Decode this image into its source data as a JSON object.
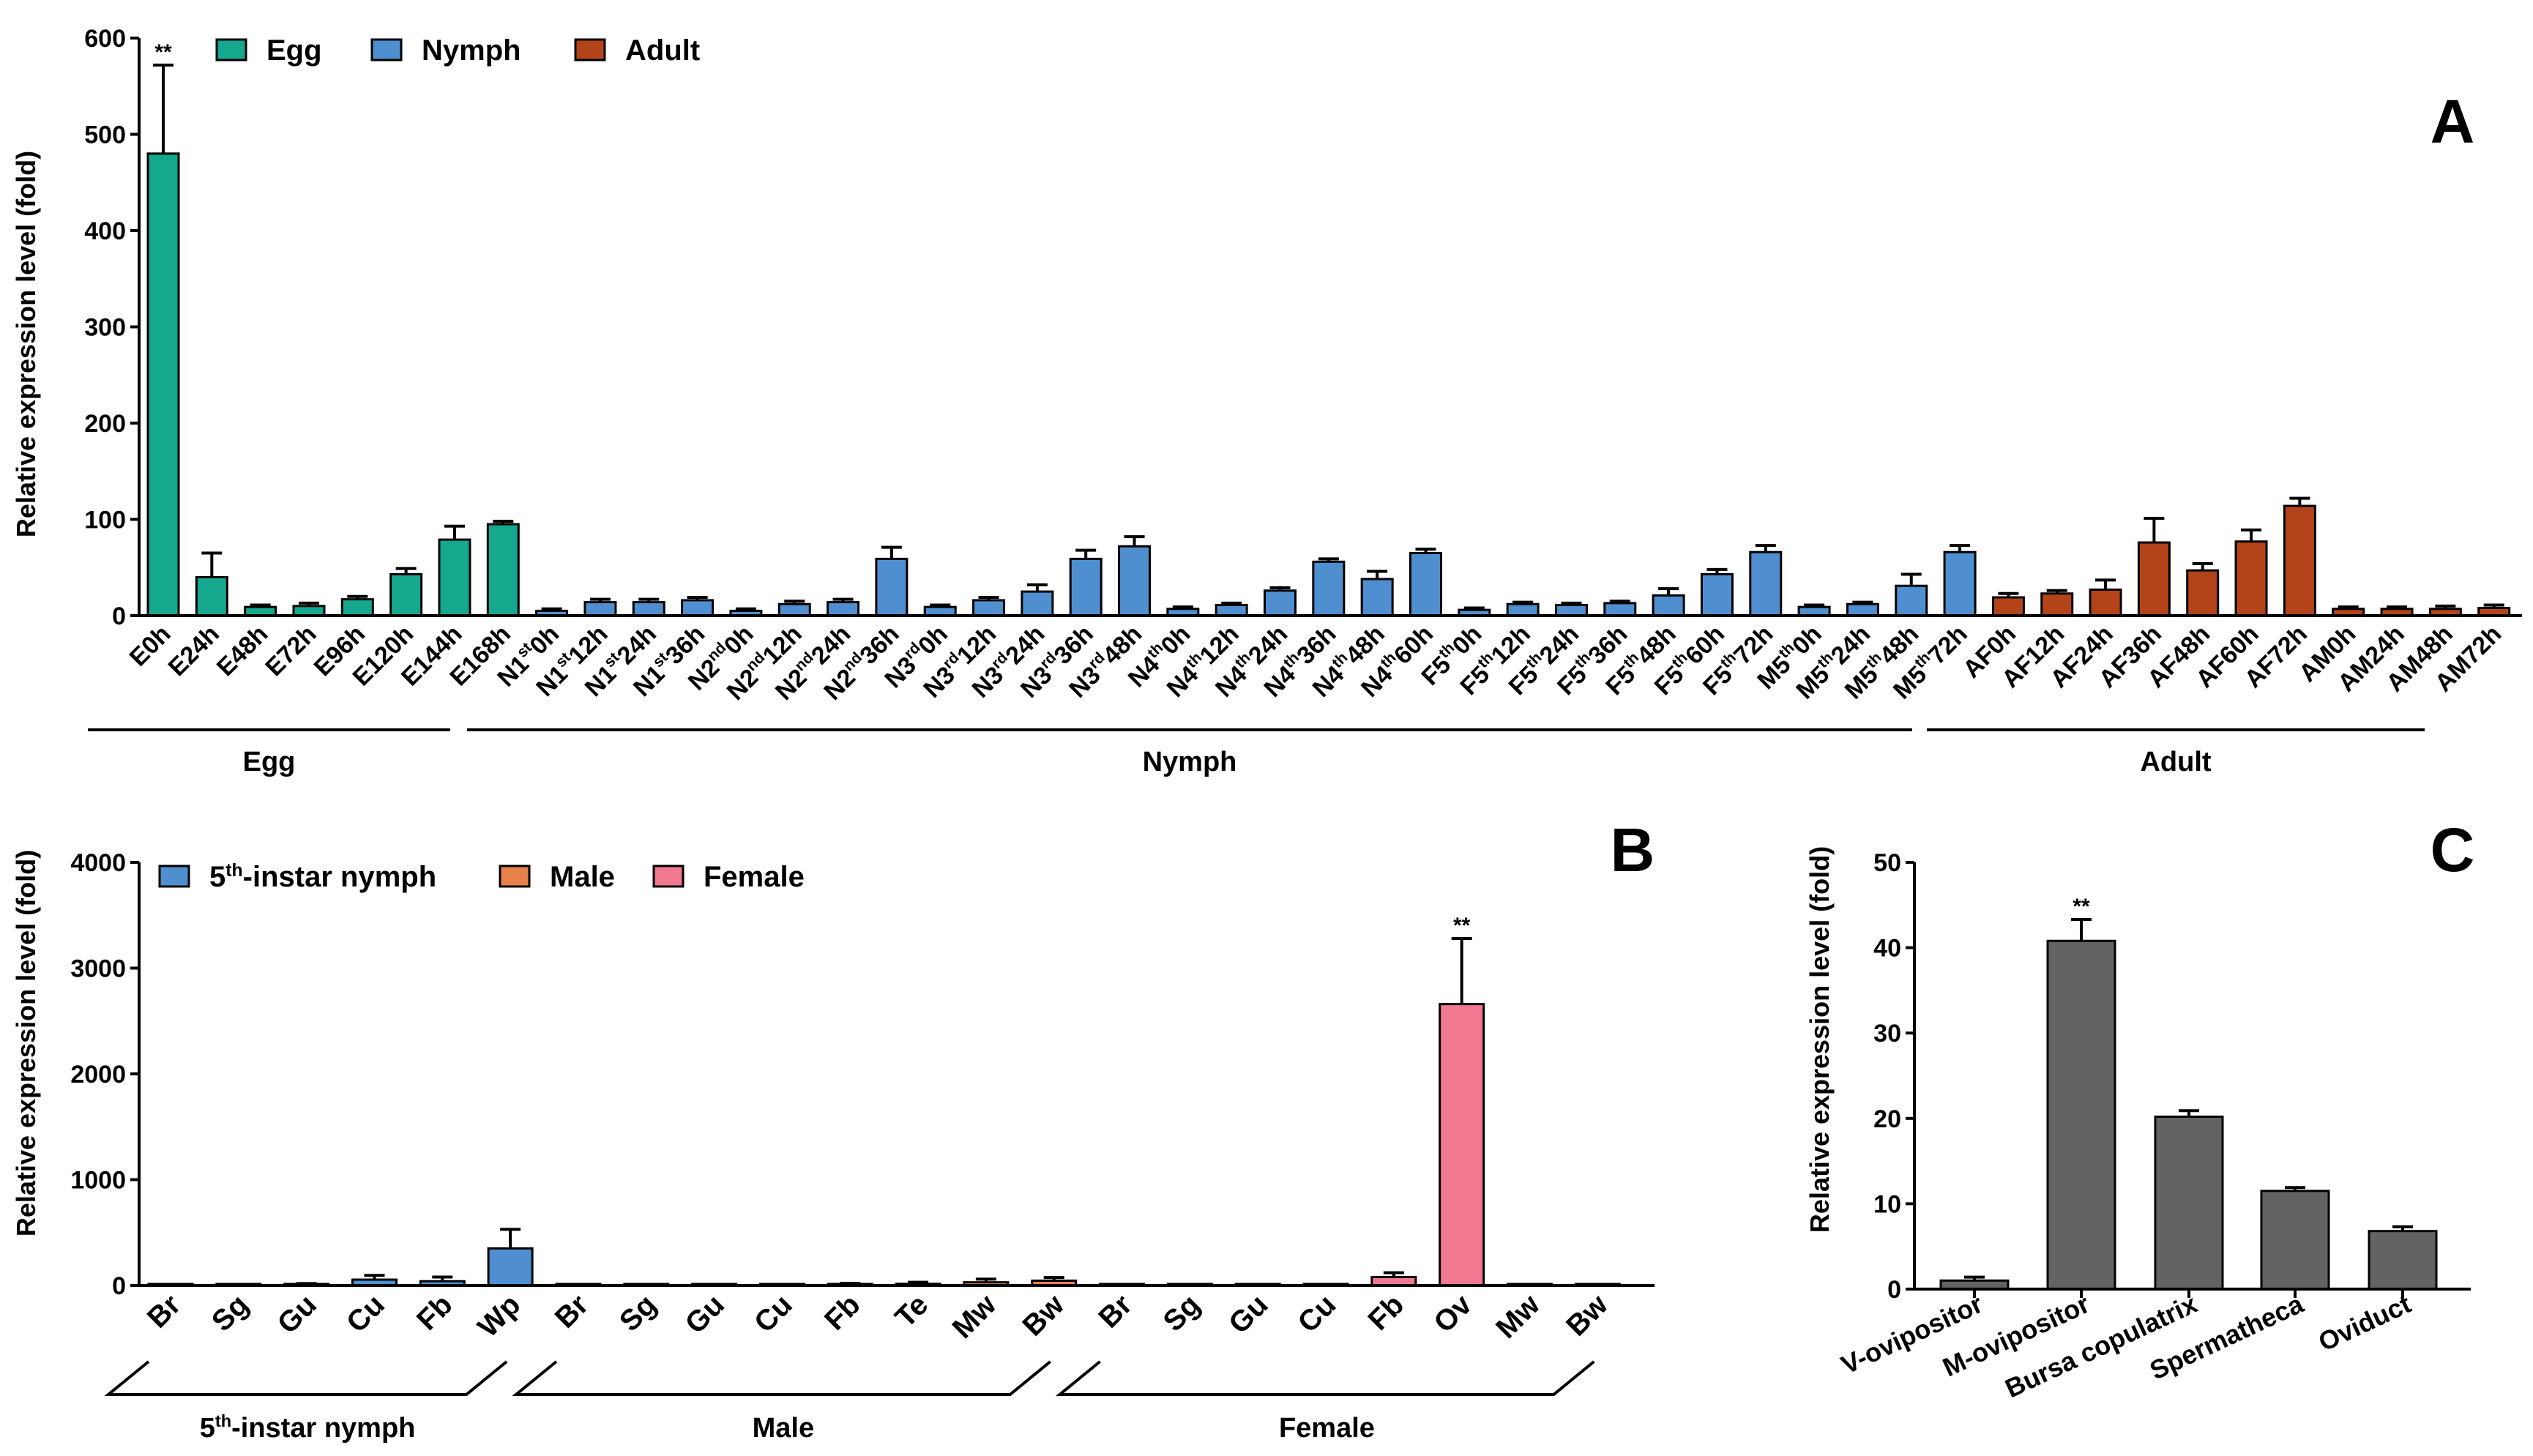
{
  "chart_data": [
    {
      "panel": "A",
      "type": "bar",
      "ylabel": "Relative expression level (fold)",
      "ylim": [
        0,
        600
      ],
      "yticks": [
        "0",
        "100",
        "200",
        "300",
        "400",
        "500",
        "600"
      ],
      "legend": [
        {
          "label": "Egg",
          "color": "#15a88e"
        },
        {
          "label": "Nymph",
          "color": "#4f8fcf"
        },
        {
          "label": "Adult",
          "color": "#b34419"
        }
      ],
      "groups": [
        {
          "label": "Egg",
          "series": 0,
          "bars": [
            {
              "cat": "E0h",
              "value": 480,
              "err": 92,
              "sig": "**"
            },
            {
              "cat": "E24h",
              "value": 40,
              "err": 25
            },
            {
              "cat": "E48h",
              "value": 9,
              "err": 2
            },
            {
              "cat": "E72h",
              "value": 10,
              "err": 3
            },
            {
              "cat": "E96h",
              "value": 17,
              "err": 3
            },
            {
              "cat": "E120h",
              "value": 43,
              "err": 6
            },
            {
              "cat": "E144h",
              "value": 79,
              "err": 14
            },
            {
              "cat": "E168h",
              "value": 95,
              "err": 3
            }
          ]
        },
        {
          "label": "Nymph",
          "series": 1,
          "bars": [
            {
              "cat": "N1st0h",
              "main": "N1",
              "sup": "st",
              "tail": "0h",
              "value": 5,
              "err": 2
            },
            {
              "cat": "N1st12h",
              "main": "N1",
              "sup": "st",
              "tail": "12h",
              "value": 14,
              "err": 3
            },
            {
              "cat": "N1st24h",
              "main": "N1",
              "sup": "st",
              "tail": "24h",
              "value": 14,
              "err": 3
            },
            {
              "cat": "N1st36h",
              "main": "N1",
              "sup": "st",
              "tail": "36h",
              "value": 16,
              "err": 3
            },
            {
              "cat": "N2nd0h",
              "main": "N2",
              "sup": "nd",
              "tail": "0h",
              "value": 5,
              "err": 2
            },
            {
              "cat": "N2nd12h",
              "main": "N2",
              "sup": "nd",
              "tail": "12h",
              "value": 12,
              "err": 3
            },
            {
              "cat": "N2nd24h",
              "main": "N2",
              "sup": "nd",
              "tail": "24h",
              "value": 14,
              "err": 3
            },
            {
              "cat": "N2nd36h",
              "main": "N2",
              "sup": "nd",
              "tail": "36h",
              "value": 59,
              "err": 12
            },
            {
              "cat": "N3rd0h",
              "main": "N3",
              "sup": "rd",
              "tail": "0h",
              "value": 9,
              "err": 2
            },
            {
              "cat": "N3rd12h",
              "main": "N3",
              "sup": "rd",
              "tail": "12h",
              "value": 16,
              "err": 3
            },
            {
              "cat": "N3rd24h",
              "main": "N3",
              "sup": "rd",
              "tail": "24h",
              "value": 25,
              "err": 7
            },
            {
              "cat": "N3rd36h",
              "main": "N3",
              "sup": "rd",
              "tail": "36h",
              "value": 59,
              "err": 9
            },
            {
              "cat": "N3rd48h",
              "main": "N3",
              "sup": "rd",
              "tail": "48h",
              "value": 72,
              "err": 10
            },
            {
              "cat": "N4th0h",
              "main": "N4",
              "sup": "th",
              "tail": "0h",
              "value": 7,
              "err": 2
            },
            {
              "cat": "N4th12h",
              "main": "N4",
              "sup": "th",
              "tail": "12h",
              "value": 11,
              "err": 2
            },
            {
              "cat": "N4th24h",
              "main": "N4",
              "sup": "th",
              "tail": "24h",
              "value": 26,
              "err": 3
            },
            {
              "cat": "N4th36h",
              "main": "N4",
              "sup": "th",
              "tail": "36h",
              "value": 56,
              "err": 3
            },
            {
              "cat": "N4th48h",
              "main": "N4",
              "sup": "th",
              "tail": "48h",
              "value": 38,
              "err": 8
            },
            {
              "cat": "N4th60h",
              "main": "N4",
              "sup": "th",
              "tail": "60h",
              "value": 65,
              "err": 4
            },
            {
              "cat": "F5th0h",
              "main": "F5",
              "sup": "th",
              "tail": "0h",
              "value": 6,
              "err": 2
            },
            {
              "cat": "F5th12h",
              "main": "F5",
              "sup": "th",
              "tail": "12h",
              "value": 12,
              "err": 2
            },
            {
              "cat": "F5th24h",
              "main": "F5",
              "sup": "th",
              "tail": "24h",
              "value": 11,
              "err": 2
            },
            {
              "cat": "F5th36h",
              "main": "F5",
              "sup": "th",
              "tail": "36h",
              "value": 13,
              "err": 2
            },
            {
              "cat": "F5th48h",
              "main": "F5",
              "sup": "th",
              "tail": "48h",
              "value": 21,
              "err": 7
            },
            {
              "cat": "F5th60h",
              "main": "F5",
              "sup": "th",
              "tail": "60h",
              "value": 43,
              "err": 5
            },
            {
              "cat": "F5th72h",
              "main": "F5",
              "sup": "th",
              "tail": "72h",
              "value": 66,
              "err": 7
            },
            {
              "cat": "M5th0h",
              "main": "M5",
              "sup": "th",
              "tail": "0h",
              "value": 9,
              "err": 2
            },
            {
              "cat": "M5th24h",
              "main": "M5",
              "sup": "th",
              "tail": "24h",
              "value": 12,
              "err": 2
            },
            {
              "cat": "M5th48h",
              "main": "M5",
              "sup": "th",
              "tail": "48h",
              "value": 31,
              "err": 12
            },
            {
              "cat": "M5th72h",
              "main": "M5",
              "sup": "th",
              "tail": "72h",
              "value": 66,
              "err": 7
            }
          ]
        },
        {
          "label": "Adult",
          "series": 2,
          "bars": [
            {
              "cat": "AF0h",
              "value": 19,
              "err": 4
            },
            {
              "cat": "AF12h",
              "value": 23,
              "err": 3
            },
            {
              "cat": "AF24h",
              "value": 27,
              "err": 10
            },
            {
              "cat": "AF36h",
              "value": 76,
              "err": 25
            },
            {
              "cat": "AF48h",
              "value": 47,
              "err": 7
            },
            {
              "cat": "AF60h",
              "value": 77,
              "err": 12
            },
            {
              "cat": "AF72h",
              "value": 114,
              "err": 8
            },
            {
              "cat": "AM0h",
              "value": 7,
              "err": 2
            },
            {
              "cat": "AM24h",
              "value": 7,
              "err": 2
            },
            {
              "cat": "AM48h",
              "value": 7,
              "err": 3
            },
            {
              "cat": "AM72h",
              "value": 8,
              "err": 3
            }
          ]
        }
      ]
    },
    {
      "panel": "B",
      "type": "bar",
      "ylabel": "Relative expression level (fold)",
      "ylim": [
        0,
        4000
      ],
      "yticks": [
        "0",
        "1000",
        "2000",
        "3000",
        "4000"
      ],
      "legend": [
        {
          "main": "5",
          "sup": "th",
          "tail": "-instar nymph",
          "label": "5th-instar nymph",
          "color": "#4f8fcf"
        },
        {
          "label": "Male",
          "color": "#e8804a"
        },
        {
          "label": "Female",
          "color": "#f07891"
        }
      ],
      "groups": [
        {
          "label": "5th-instar nymph",
          "main": "5",
          "sup": "th",
          "tail": "-instar nymph",
          "series": 0,
          "bars": [
            {
              "cat": "Br",
              "value": 5,
              "err": 5
            },
            {
              "cat": "Sg",
              "value": 3,
              "err": 3
            },
            {
              "cat": "Gu",
              "value": 10,
              "err": 8
            },
            {
              "cat": "Cu",
              "value": 55,
              "err": 40
            },
            {
              "cat": "Fb",
              "value": 40,
              "err": 40
            },
            {
              "cat": "Wp",
              "value": 350,
              "err": 180
            }
          ]
        },
        {
          "label": "Male",
          "series": 1,
          "bars": [
            {
              "cat": "Br",
              "value": 5,
              "err": 5
            },
            {
              "cat": "Sg",
              "value": 2,
              "err": 2
            },
            {
              "cat": "Gu",
              "value": 3,
              "err": 3
            },
            {
              "cat": "Cu",
              "value": 5,
              "err": 5
            },
            {
              "cat": "Fb",
              "value": 10,
              "err": 10
            },
            {
              "cat": "Te",
              "value": 15,
              "err": 15
            },
            {
              "cat": "Mw",
              "value": 30,
              "err": 30
            },
            {
              "cat": "Bw",
              "value": 45,
              "err": 30
            }
          ]
        },
        {
          "label": "Female",
          "series": 2,
          "bars": [
            {
              "cat": "Br",
              "value": 5,
              "err": 5
            },
            {
              "cat": "Sg",
              "value": 3,
              "err": 3
            },
            {
              "cat": "Gu",
              "value": 3,
              "err": 3
            },
            {
              "cat": "Cu",
              "value": 5,
              "err": 5
            },
            {
              "cat": "Fb",
              "value": 80,
              "err": 40
            },
            {
              "cat": "Ov",
              "value": 2660,
              "err": 620,
              "sig": "**"
            },
            {
              "cat": "Mw",
              "value": 5,
              "err": 5
            },
            {
              "cat": "Bw",
              "value": 5,
              "err": 5
            }
          ]
        }
      ]
    },
    {
      "panel": "C",
      "type": "bar",
      "ylabel": "Relative expression level (fold)",
      "ylim": [
        0,
        50
      ],
      "yticks": [
        "0",
        "10",
        "20",
        "30",
        "40",
        "50"
      ],
      "color": "#636363",
      "bars": [
        {
          "cat": "V-ovipositor",
          "value": 1,
          "err": 0.4
        },
        {
          "cat": "M-ovipositor",
          "value": 40.8,
          "err": 2.5,
          "sig": "**"
        },
        {
          "cat": "Bursa copulatrix",
          "value": 20.2,
          "err": 0.7
        },
        {
          "cat": "Spermatheca",
          "value": 11.5,
          "err": 0.4
        },
        {
          "cat": "Oviduct",
          "value": 6.8,
          "err": 0.5
        }
      ]
    }
  ]
}
